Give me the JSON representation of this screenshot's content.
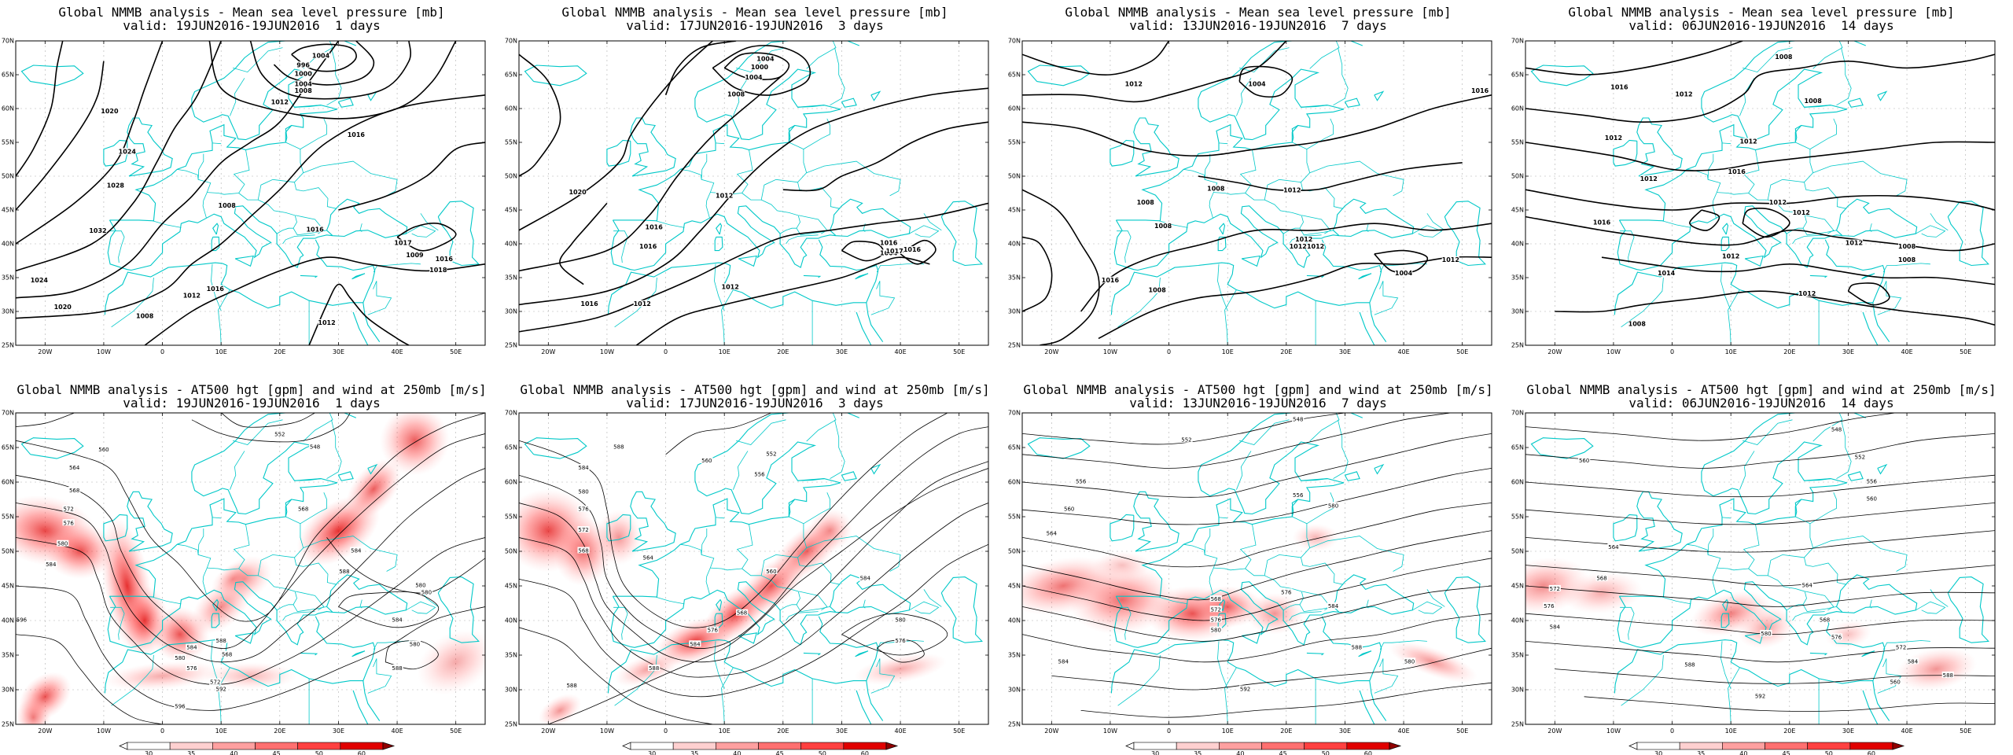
{
  "figure": {
    "top_titles": [
      {
        "line1": "Global NMMB analysis - Mean sea level pressure [mb]",
        "line2": "valid: 19JUN2016-19JUN2016  1 days"
      },
      {
        "line1": "Global NMMB analysis - Mean sea level pressure [mb]",
        "line2": "valid: 17JUN2016-19JUN2016  3 days"
      },
      {
        "line1": "Global NMMB analysis - Mean sea level pressure [mb]",
        "line2": "valid: 13JUN2016-19JUN2016  7 days"
      },
      {
        "line1": "Global NMMB analysis - Mean sea level pressure [mb]",
        "line2": "valid: 06JUN2016-19JUN2016  14 days"
      }
    ],
    "bottom_titles": [
      {
        "line1": "Global NMMB analysis - AT500 hgt [gpm] and wind at 250mb [m/s]",
        "line2": "valid: 19JUN2016-19JUN2016  1 days"
      },
      {
        "line1": "Global NMMB analysis - AT500 hgt [gpm] and wind at 250mb [m/s]",
        "line2": "valid: 17JUN2016-19JUN2016  3 days"
      },
      {
        "line1": "Global NMMB analysis - AT500 hgt [gpm] and wind at 250mb [m/s]",
        "line2": "valid: 13JUN2016-19JUN2016  7 days"
      },
      {
        "line1": "Global NMMB analysis - AT500 hgt [gpm] and wind at 250mb [m/s]",
        "line2": "valid: 06JUN2016-19JUN2016  14 days"
      }
    ],
    "lat_ticks": [
      "70N",
      "65N",
      "60N",
      "55N",
      "50N",
      "45N",
      "40N",
      "35N",
      "30N",
      "25N"
    ],
    "lon_ticks": [
      "20W",
      "10W",
      "0",
      "10E",
      "20E",
      "30E",
      "40E",
      "50E"
    ],
    "colorbar_ticks": [
      "30",
      "35",
      "40",
      "45",
      "50",
      "60"
    ],
    "colorbar_colors": [
      "#ffffff",
      "#ffd0d0",
      "#ffa0a0",
      "#ff7070",
      "#ff4040",
      "#e00000",
      "#900000"
    ],
    "colors": {
      "coast": "#00c8c8",
      "contour": "#000000",
      "grid": "#b0b0b0"
    },
    "mslp_labels": [
      [
        "1004",
        "996",
        "1000",
        "1004",
        "1008",
        "1012",
        "1020",
        "1024",
        "1028",
        "1032",
        "1020",
        "1024",
        "1016",
        "1012",
        "1008",
        "1016",
        "1016",
        "1017",
        "1009",
        "1016",
        "1012",
        "1008",
        "1032",
        "1018"
      ],
      [
        "1004",
        "1000",
        "1004",
        "1008",
        "1012",
        "1020",
        "1016",
        "1012",
        "1016",
        "1016",
        "1016",
        "1004",
        "1012",
        "1017",
        "1016"
      ],
      [
        "1012",
        "1016",
        "1004",
        "1008",
        "1012",
        "1008",
        "1008",
        "1012",
        "1012",
        "1016",
        "1008",
        "1012",
        "1004",
        "1012"
      ],
      [
        "1008",
        "1016",
        "1012",
        "1008",
        "1012",
        "1012",
        "1016",
        "1012",
        "1012",
        "1016",
        "1012",
        "1012",
        "1012",
        "1008",
        "1014",
        "1008",
        "1012",
        "1008"
      ]
    ],
    "z500_labels": [
      [
        "560",
        "552",
        "548",
        "564",
        "568",
        "572",
        "576",
        "580",
        "584",
        "596",
        "588",
        "584",
        "580",
        "576",
        "572",
        "568",
        "584",
        "580",
        "588",
        "592",
        "596",
        "580",
        "584",
        "588",
        "580",
        "568"
      ],
      [
        "588",
        "584",
        "580",
        "576",
        "572",
        "568",
        "564",
        "560",
        "556",
        "552",
        "568",
        "576",
        "584",
        "588",
        "580",
        "576",
        "584",
        "560",
        "588"
      ],
      [
        "548",
        "552",
        "556",
        "560",
        "564",
        "568",
        "572",
        "576",
        "580",
        "584",
        "556",
        "580",
        "584",
        "588",
        "576",
        "592",
        "596",
        "580"
      ],
      [
        "560",
        "548",
        "552",
        "556",
        "560",
        "564",
        "568",
        "572",
        "576",
        "580",
        "584",
        "588",
        "592",
        "560",
        "564",
        "568",
        "576",
        "584",
        "588",
        "572"
      ]
    ]
  }
}
